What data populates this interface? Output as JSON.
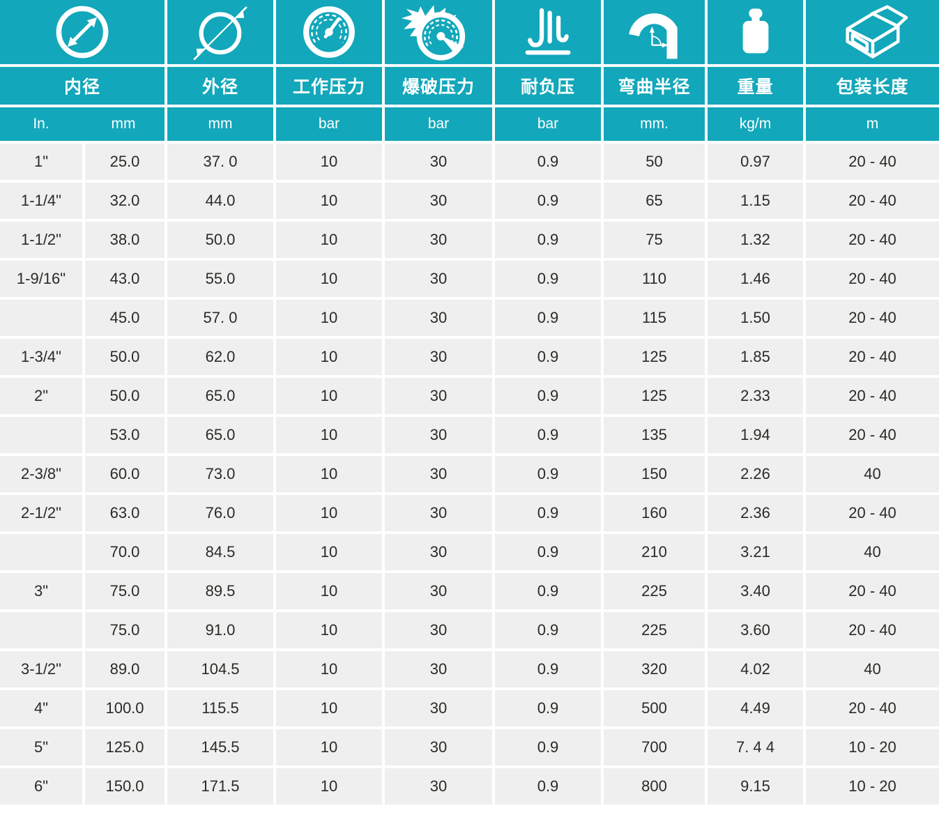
{
  "colors": {
    "teal": "#12a7ba",
    "row_bg": "#efefef",
    "text_dark": "#2d2a26",
    "white": "#ffffff"
  },
  "table": {
    "columns": [
      {
        "label": "内径",
        "icon": "inner-diameter-icon",
        "unit": [
          "In.",
          "mm"
        ]
      },
      {
        "label": "外径",
        "icon": "outer-diameter-icon",
        "unit": "mm"
      },
      {
        "label": "工作压力",
        "icon": "working-pressure-gauge-icon",
        "unit": "bar"
      },
      {
        "label": "爆破压力",
        "icon": "burst-pressure-gauge-icon",
        "unit": "bar"
      },
      {
        "label": "耐负压",
        "icon": "vacuum-resistance-icon",
        "unit": "bar"
      },
      {
        "label": "弯曲半径",
        "icon": "bend-radius-icon",
        "unit": "mm."
      },
      {
        "label": "重量",
        "icon": "weight-icon",
        "unit": "kg/m"
      },
      {
        "label": "包装长度",
        "icon": "package-length-icon",
        "unit": "m"
      }
    ],
    "rows": [
      [
        "1\"",
        "25.0",
        "37. 0",
        "10",
        "30",
        "0.9",
        "50",
        "0.97",
        "20 - 40"
      ],
      [
        "1-1/4\"",
        "32.0",
        "44.0",
        "10",
        "30",
        "0.9",
        "65",
        "1.15",
        "20 - 40"
      ],
      [
        "1-1/2\"",
        "38.0",
        "50.0",
        "10",
        "30",
        "0.9",
        "75",
        "1.32",
        "20 - 40"
      ],
      [
        "1-9/16\"",
        "43.0",
        "55.0",
        "10",
        "30",
        "0.9",
        "110",
        "1.46",
        "20 - 40"
      ],
      [
        "",
        "45.0",
        "57. 0",
        "10",
        "30",
        "0.9",
        "115",
        "1.50",
        "20 - 40"
      ],
      [
        "1-3/4\"",
        "50.0",
        "62.0",
        "10",
        "30",
        "0.9",
        "125",
        "1.85",
        "20 - 40"
      ],
      [
        "2\"",
        "50.0",
        "65.0",
        "10",
        "30",
        "0.9",
        "125",
        "2.33",
        "20 - 40"
      ],
      [
        "",
        "53.0",
        "65.0",
        "10",
        "30",
        "0.9",
        "135",
        "1.94",
        "20 - 40"
      ],
      [
        "2-3/8\"",
        "60.0",
        "73.0",
        "10",
        "30",
        "0.9",
        "150",
        "2.26",
        "40"
      ],
      [
        "2-1/2\"",
        "63.0",
        "76.0",
        "10",
        "30",
        "0.9",
        "160",
        "2.36",
        "20 - 40"
      ],
      [
        "",
        "70.0",
        "84.5",
        "10",
        "30",
        "0.9",
        "210",
        "3.21",
        "40"
      ],
      [
        "3\"",
        "75.0",
        "89.5",
        "10",
        "30",
        "0.9",
        "225",
        "3.40",
        "20 - 40"
      ],
      [
        "",
        "75.0",
        "91.0",
        "10",
        "30",
        "0.9",
        "225",
        "3.60",
        "20 - 40"
      ],
      [
        "3-1/2\"",
        "89.0",
        "104.5",
        "10",
        "30",
        "0.9",
        "320",
        "4.02",
        "40"
      ],
      [
        "4\"",
        "100.0",
        "115.5",
        "10",
        "30",
        "0.9",
        "500",
        "4.49",
        "20 - 40"
      ],
      [
        "5\"",
        "125.0",
        "145.5",
        "10",
        "30",
        "0.9",
        "700",
        "7. 4 4",
        "10 - 20"
      ],
      [
        "6\"",
        "150.0",
        "171.5",
        "10",
        "30",
        "0.9",
        "800",
        "9.15",
        "10 - 20"
      ]
    ]
  }
}
